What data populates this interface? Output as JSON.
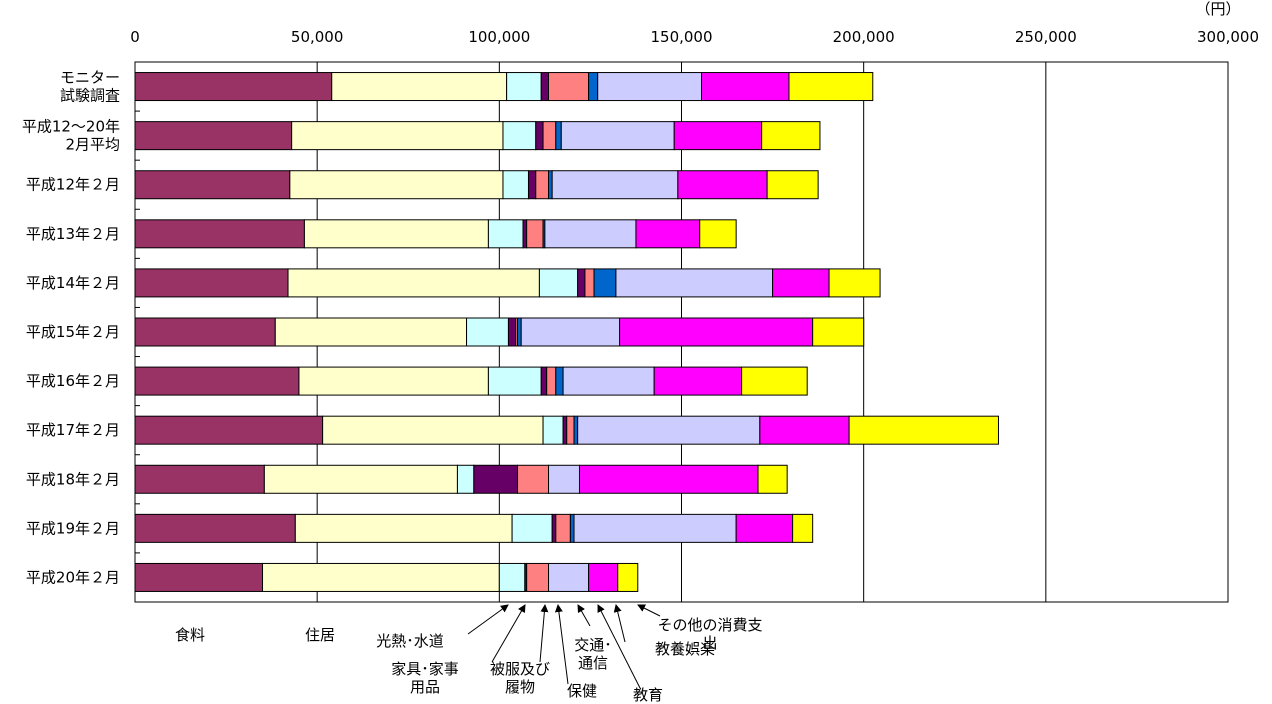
{
  "chart_data": {
    "type": "bar",
    "orientation": "horizontal",
    "stacked": true,
    "unit": "（円）",
    "xlim": [
      0,
      300000
    ],
    "x_ticks": [
      "0",
      "50,000",
      "100,000",
      "150,000",
      "200,000",
      "250,000",
      "300,000"
    ],
    "x_tick_values": [
      0,
      50000,
      100000,
      150000,
      200000,
      250000,
      300000
    ],
    "grid": "vertical",
    "categories": [
      "モニター試験調査",
      "平成12～20年2月平均",
      "平成12年２月",
      "平成13年２月",
      "平成14年２月",
      "平成15年２月",
      "平成16年２月",
      "平成17年２月",
      "平成18年２月",
      "平成19年２月",
      "平成20年２月"
    ],
    "category_lines": [
      [
        "モニター",
        "試験調査"
      ],
      [
        "平成12～20年",
        "2月平均"
      ],
      [
        "平成12年２月"
      ],
      [
        "平成13年２月"
      ],
      [
        "平成14年２月"
      ],
      [
        "平成15年２月"
      ],
      [
        "平成16年２月"
      ],
      [
        "平成17年２月"
      ],
      [
        "平成18年２月"
      ],
      [
        "平成19年２月"
      ],
      [
        "平成20年２月"
      ]
    ],
    "series": [
      {
        "name": "食料",
        "color": "#993366",
        "values": [
          54000,
          43000,
          42500,
          46500,
          42000,
          38500,
          45000,
          51500,
          35500,
          44000,
          35000
        ]
      },
      {
        "name": "住居",
        "color": "#FFFFCC",
        "values": [
          48000,
          58000,
          58500,
          50500,
          69000,
          52500,
          52000,
          60500,
          53000,
          59500,
          65000
        ]
      },
      {
        "name": "光熱・水道",
        "color": "#CCFFFF",
        "values": [
          9500,
          9000,
          7000,
          9500,
          10500,
          11500,
          14500,
          5500,
          4500,
          11000,
          7000
        ]
      },
      {
        "name": "家具・家事用品",
        "color": "#660066",
        "values": [
          2000,
          2000,
          2000,
          1000,
          2000,
          2000,
          1500,
          1000,
          12000,
          1000,
          500
        ]
      },
      {
        "name": "被服及び履物",
        "color": "#FF8080",
        "values": [
          11000,
          3500,
          3500,
          4500,
          2500,
          500,
          2500,
          2000,
          8500,
          4000,
          6000
        ]
      },
      {
        "name": "保健",
        "color": "#0066CC",
        "values": [
          2500,
          1500,
          1000,
          500,
          6000,
          1000,
          2000,
          1000,
          0,
          1000,
          0
        ]
      },
      {
        "name": "交通・通信",
        "color": "#CCCCFF",
        "values": [
          28500,
          31000,
          34500,
          25000,
          43000,
          27000,
          25000,
          50000,
          8500,
          44500,
          11000
        ]
      },
      {
        "name": "教育",
        "color": "#9999FF",
        "values": [
          0,
          0,
          0,
          0,
          0,
          0,
          0,
          0,
          0,
          0,
          0
        ]
      },
      {
        "name": "教養娯楽",
        "color": "#FF00FF",
        "values": [
          24000,
          24000,
          24500,
          17500,
          15500,
          53000,
          24000,
          24500,
          49000,
          15500,
          8000
        ]
      },
      {
        "name": "その他の消費支出",
        "color": "#FFFF00",
        "values": [
          23000,
          16000,
          14000,
          10000,
          14000,
          14000,
          18000,
          41000,
          8000,
          5500,
          5500
        ]
      }
    ],
    "annotations": [
      {
        "lines": [
          "食料"
        ]
      },
      {
        "lines": [
          "住居"
        ]
      },
      {
        "lines": [
          "光熱･水道"
        ]
      },
      {
        "lines": [
          "家具･家事",
          "用品"
        ]
      },
      {
        "lines": [
          "被服及び",
          "履物"
        ]
      },
      {
        "lines": [
          "保健"
        ]
      },
      {
        "lines": [
          "交通･",
          "通信"
        ]
      },
      {
        "lines": [
          "教育"
        ]
      },
      {
        "lines": [
          "教養娯楽"
        ]
      },
      {
        "lines": [
          "その他の消費支",
          "出"
        ]
      }
    ]
  }
}
